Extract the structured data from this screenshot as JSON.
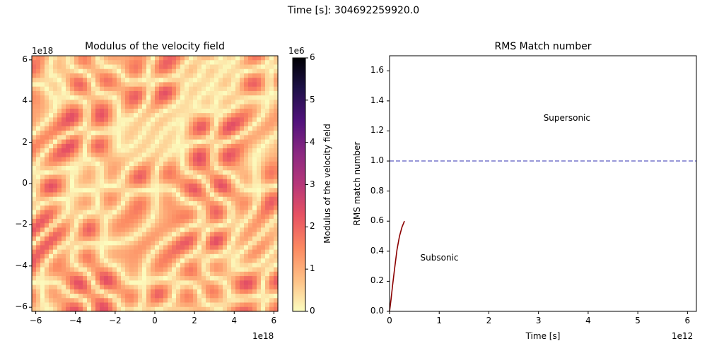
{
  "suptitle": "Time [s]: 304692259920.0",
  "chart_data": [
    {
      "type": "heatmap",
      "title": "Modulus of the velocity field",
      "x_offset_label": "1e18",
      "y_offset_label": "1e18",
      "xlim": [
        -6.2,
        6.2
      ],
      "ylim": [
        -6.2,
        6.2
      ],
      "xticks": [
        -6,
        -4,
        -2,
        0,
        2,
        4,
        6
      ],
      "xtick_labels": [
        "−6",
        "−4",
        "−2",
        "0",
        "2",
        "4",
        "6"
      ],
      "yticks": [
        -6,
        -4,
        -2,
        0,
        2,
        4,
        6
      ],
      "ytick_labels": [
        "−6",
        "−4",
        "−2",
        "0",
        "2",
        "4",
        "6"
      ],
      "colormap": "magma_r",
      "colorbar": {
        "label": "Modulus of the velocity field",
        "offset_label": "1e6",
        "range": [
          0,
          6
        ],
        "ticks": [
          0,
          1,
          2,
          3,
          4,
          5,
          6
        ],
        "tick_labels": [
          "0",
          "1",
          "2",
          "3",
          "4",
          "5",
          "6"
        ]
      },
      "field_range_shown": [
        0,
        2.4
      ]
    },
    {
      "type": "line",
      "title": "RMS Match number",
      "xlabel": "Time [s]",
      "ylabel": "RMS match number",
      "x_offset_label": "1e12",
      "xlim": [
        0,
        6.18
      ],
      "ylim": [
        0,
        1.7
      ],
      "xticks": [
        0,
        1,
        2,
        3,
        4,
        5,
        6
      ],
      "xtick_labels": [
        "0",
        "1",
        "2",
        "3",
        "4",
        "5",
        "6"
      ],
      "yticks": [
        0,
        0.2,
        0.4,
        0.6,
        0.8,
        1.0,
        1.2,
        1.4,
        1.6
      ],
      "ytick_labels": [
        "0.0",
        "0.2",
        "0.4",
        "0.6",
        "0.8",
        "1.0",
        "1.2",
        "1.4",
        "1.6"
      ],
      "series": [
        {
          "color": "#8b0000",
          "x": [
            0,
            0.03,
            0.06,
            0.1,
            0.15,
            0.2,
            0.25,
            0.3
          ],
          "y": [
            0.0,
            0.08,
            0.17,
            0.28,
            0.41,
            0.5,
            0.56,
            0.6
          ]
        }
      ],
      "hline": {
        "y": 1.0,
        "style": "dashed",
        "color": "#7777cc"
      },
      "annotations": [
        {
          "text": "Supersonic",
          "x": 3.1,
          "y": 1.28
        },
        {
          "text": "Subsonic",
          "x": 0.62,
          "y": 0.35
        }
      ]
    }
  ]
}
